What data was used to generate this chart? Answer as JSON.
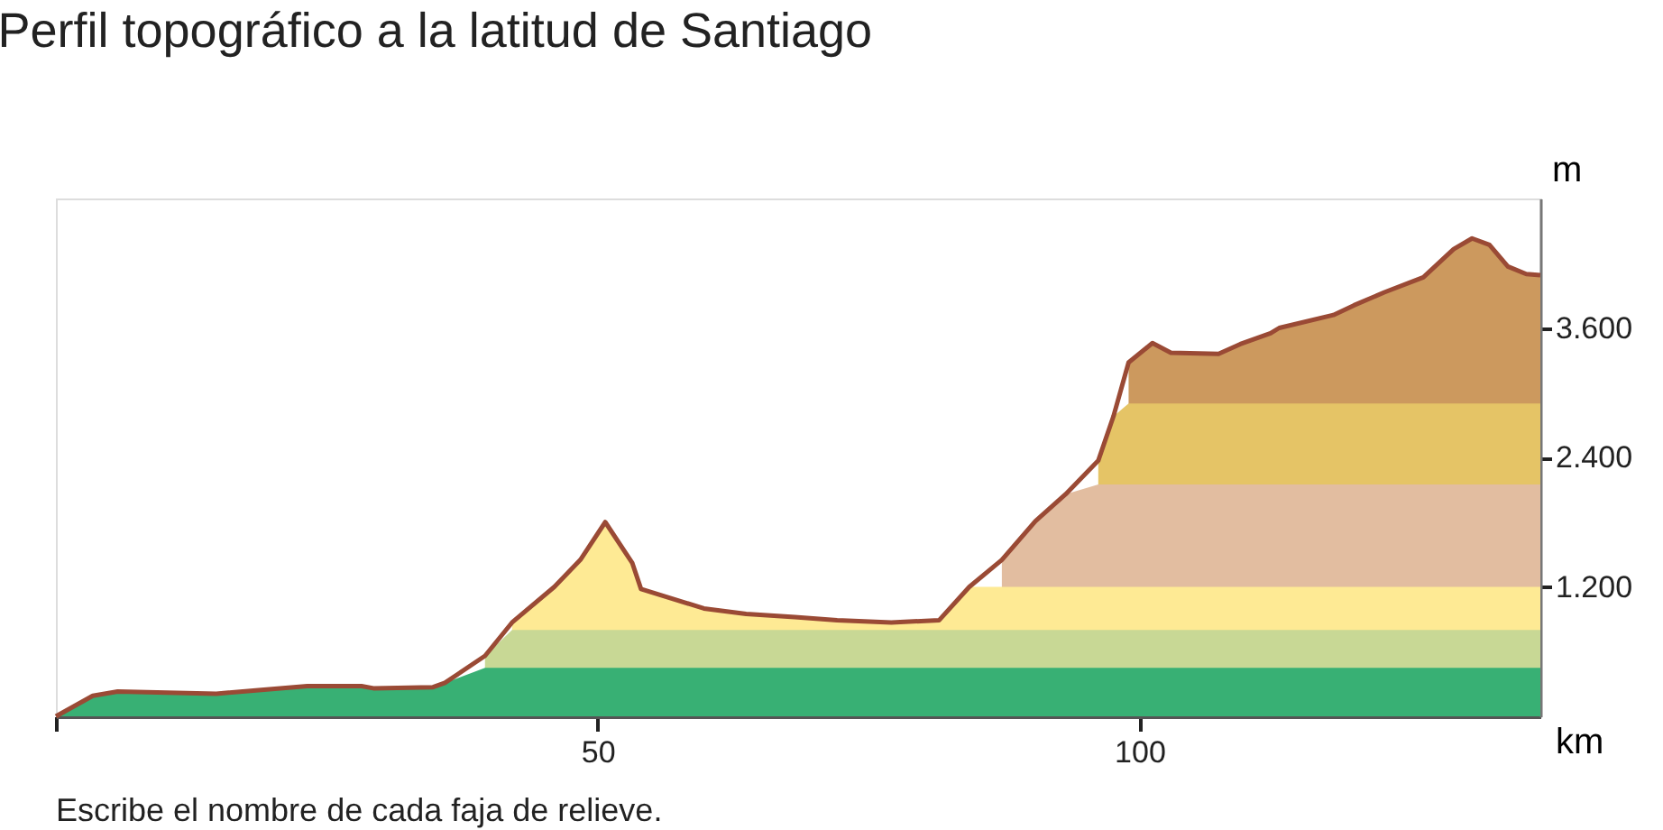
{
  "chart_data": {
    "type": "area",
    "title": "Perfil topográfico a la latitud de Santiago",
    "xlabel": "km",
    "ylabel": "m",
    "annotations": [
      "Escribe el nombre de cada faja de relieve."
    ],
    "x": [
      0,
      3.4,
      5.7,
      14.8,
      23.2,
      28.2,
      29.3,
      34.8,
      35.9,
      39.6,
      42.1,
      46.0,
      48.4,
      50.7,
      53.2,
      54.0,
      59.8,
      63.7,
      68.2,
      72.1,
      77.1,
      81.5,
      84.3,
      87.3,
      90.4,
      93.2,
      96.2,
      97.6,
      99.0,
      101.2,
      102.9,
      107.3,
      109.3,
      112.1,
      112.9,
      117.9,
      119.8,
      122.6,
      126.2,
      129.0,
      130.7,
      132.3,
      134.0,
      135.7,
      137
    ],
    "series": [
      {
        "color": "#cc995e",
        "values": [
          null,
          null,
          null,
          null,
          null,
          null,
          null,
          null,
          null,
          null,
          null,
          null,
          null,
          null,
          null,
          null,
          null,
          null,
          null,
          null,
          null,
          null,
          null,
          null,
          null,
          null,
          null,
          null,
          3280,
          3460,
          3370,
          3360,
          3450,
          3550,
          3600,
          3720,
          3810,
          3930,
          4070,
          4330,
          4430,
          4370,
          4170,
          4100,
          4090
        ]
      },
      {
        "color": "#e5c466",
        "values": [
          null,
          null,
          null,
          null,
          null,
          null,
          null,
          null,
          null,
          null,
          null,
          null,
          null,
          null,
          null,
          null,
          null,
          null,
          null,
          null,
          null,
          null,
          null,
          null,
          null,
          null,
          2370,
          2780,
          2900,
          2900,
          2900,
          2900,
          2900,
          2900,
          2900,
          2900,
          2900,
          2900,
          2900,
          2900,
          2900,
          2900,
          2900,
          2900,
          2900
        ]
      },
      {
        "color": "#e2bda0",
        "values": [
          null,
          null,
          null,
          null,
          null,
          null,
          null,
          null,
          null,
          null,
          null,
          null,
          null,
          null,
          null,
          null,
          null,
          null,
          null,
          null,
          null,
          null,
          null,
          1450,
          1810,
          2060,
          2150,
          2150,
          2150,
          2150,
          2150,
          2150,
          2150,
          2150,
          2150,
          2150,
          2150,
          2150,
          2150,
          2150,
          2150,
          2150,
          2150,
          2150,
          2150
        ]
      },
      {
        "color": "#feea94",
        "values": [
          null,
          null,
          null,
          null,
          null,
          null,
          null,
          null,
          null,
          null,
          870,
          1200,
          1450,
          1800,
          1420,
          1180,
          1000,
          950,
          920,
          890,
          870,
          890,
          1200,
          1200,
          1200,
          1200,
          1200,
          1200,
          1200,
          1200,
          1200,
          1200,
          1200,
          1200,
          1200,
          1200,
          1200,
          1200,
          1200,
          1200,
          1200,
          1200,
          1200,
          1200,
          1200
        ]
      },
      {
        "color": "#c8d895",
        "values": [
          null,
          null,
          null,
          null,
          null,
          null,
          null,
          null,
          null,
          560,
          800,
          800,
          800,
          800,
          800,
          800,
          800,
          800,
          800,
          800,
          800,
          800,
          800,
          800,
          800,
          800,
          800,
          800,
          800,
          800,
          800,
          800,
          800,
          800,
          800,
          800,
          800,
          800,
          800,
          800,
          800,
          800,
          800,
          800,
          800
        ]
      },
      {
        "color": "#38b074",
        "values": [
          0,
          190,
          230,
          210,
          280,
          280,
          260,
          270,
          310,
          450,
          450,
          450,
          450,
          450,
          450,
          450,
          450,
          450,
          450,
          450,
          450,
          450,
          450,
          450,
          450,
          450,
          450,
          450,
          450,
          450,
          450,
          450,
          450,
          450,
          450,
          450,
          450,
          450,
          450,
          450,
          450,
          450,
          450,
          450,
          450
        ]
      },
      {
        "type": "line",
        "color": "#9a4a35",
        "values": [
          0,
          190,
          230,
          210,
          280,
          280,
          260,
          270,
          310,
          560,
          870,
          1200,
          1450,
          1800,
          1420,
          1180,
          1000,
          950,
          920,
          890,
          870,
          890,
          1200,
          1450,
          1810,
          2060,
          2370,
          2780,
          3280,
          3460,
          3370,
          3360,
          3450,
          3550,
          3600,
          3720,
          3810,
          3930,
          4070,
          4330,
          4430,
          4370,
          4170,
          4100,
          4090
        ]
      }
    ],
    "xlim": [
      0,
      137
    ],
    "xticks": [
      {
        "value": 0,
        "label": null
      },
      50,
      100
    ],
    "ylim": [
      0,
      4800
    ],
    "yticks": [
      {
        "value": 1200,
        "label": "1.200"
      },
      {
        "value": 2400,
        "label": "2.400"
      },
      {
        "value": 3600,
        "label": "3.600"
      }
    ],
    "grid": false
  }
}
